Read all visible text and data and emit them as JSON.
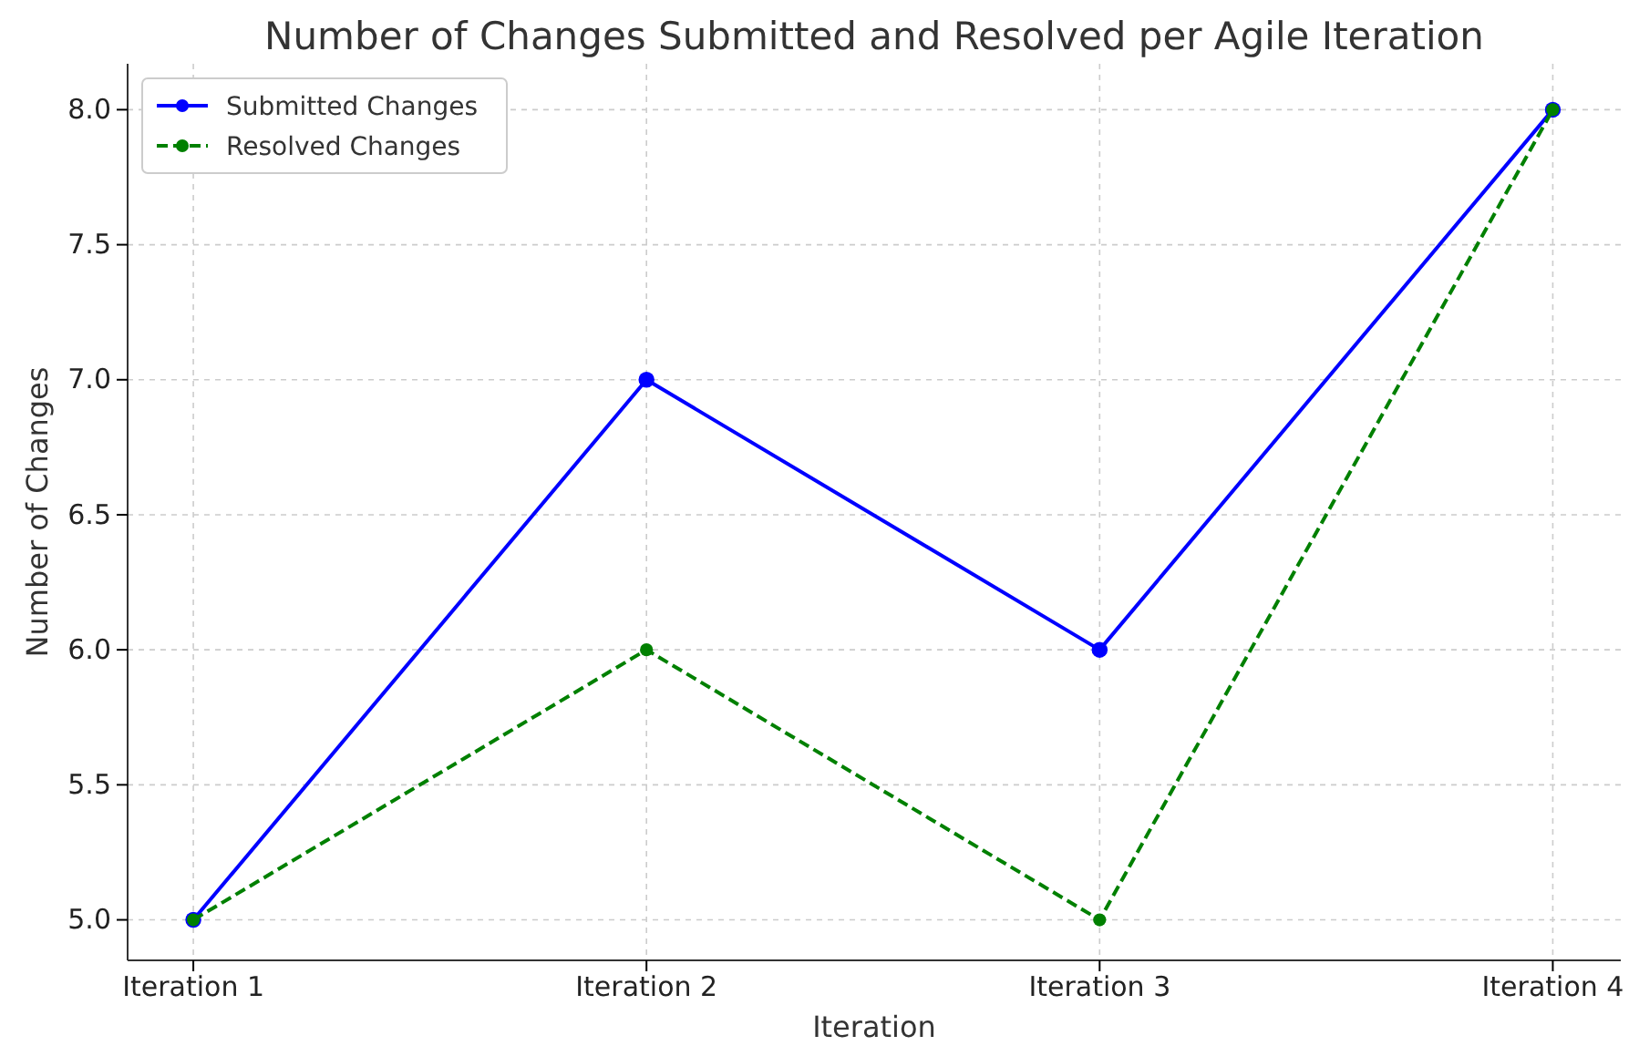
{
  "chart_data": {
    "type": "line",
    "title": "Number of Changes Submitted and Resolved per Agile Iteration",
    "xlabel": "Iteration",
    "ylabel": "Number of Changes",
    "categories": [
      "Iteration 1",
      "Iteration 2",
      "Iteration 3",
      "Iteration 4"
    ],
    "series": [
      {
        "name": "Submitted Changes",
        "color": "#0000ff",
        "values": [
          5,
          7,
          6,
          8
        ],
        "line_style": "solid"
      },
      {
        "name": "Resolved Changes",
        "color": "#008000",
        "values": [
          5,
          6,
          5,
          8
        ],
        "line_style": "dashed"
      }
    ],
    "ylim": [
      4.85,
      8.17
    ],
    "yticks": [
      {
        "value": 5,
        "label": "5.0"
      },
      {
        "value": 5.5,
        "label": "5.5"
      },
      {
        "value": 6,
        "label": "6.0"
      },
      {
        "value": 6.5,
        "label": "6.5"
      },
      {
        "value": 7,
        "label": "7.0"
      },
      {
        "value": 7.5,
        "label": "7.5"
      },
      {
        "value": 8,
        "label": "8.0"
      }
    ],
    "grid": true,
    "legend": "top left",
    "marker": "circle"
  }
}
